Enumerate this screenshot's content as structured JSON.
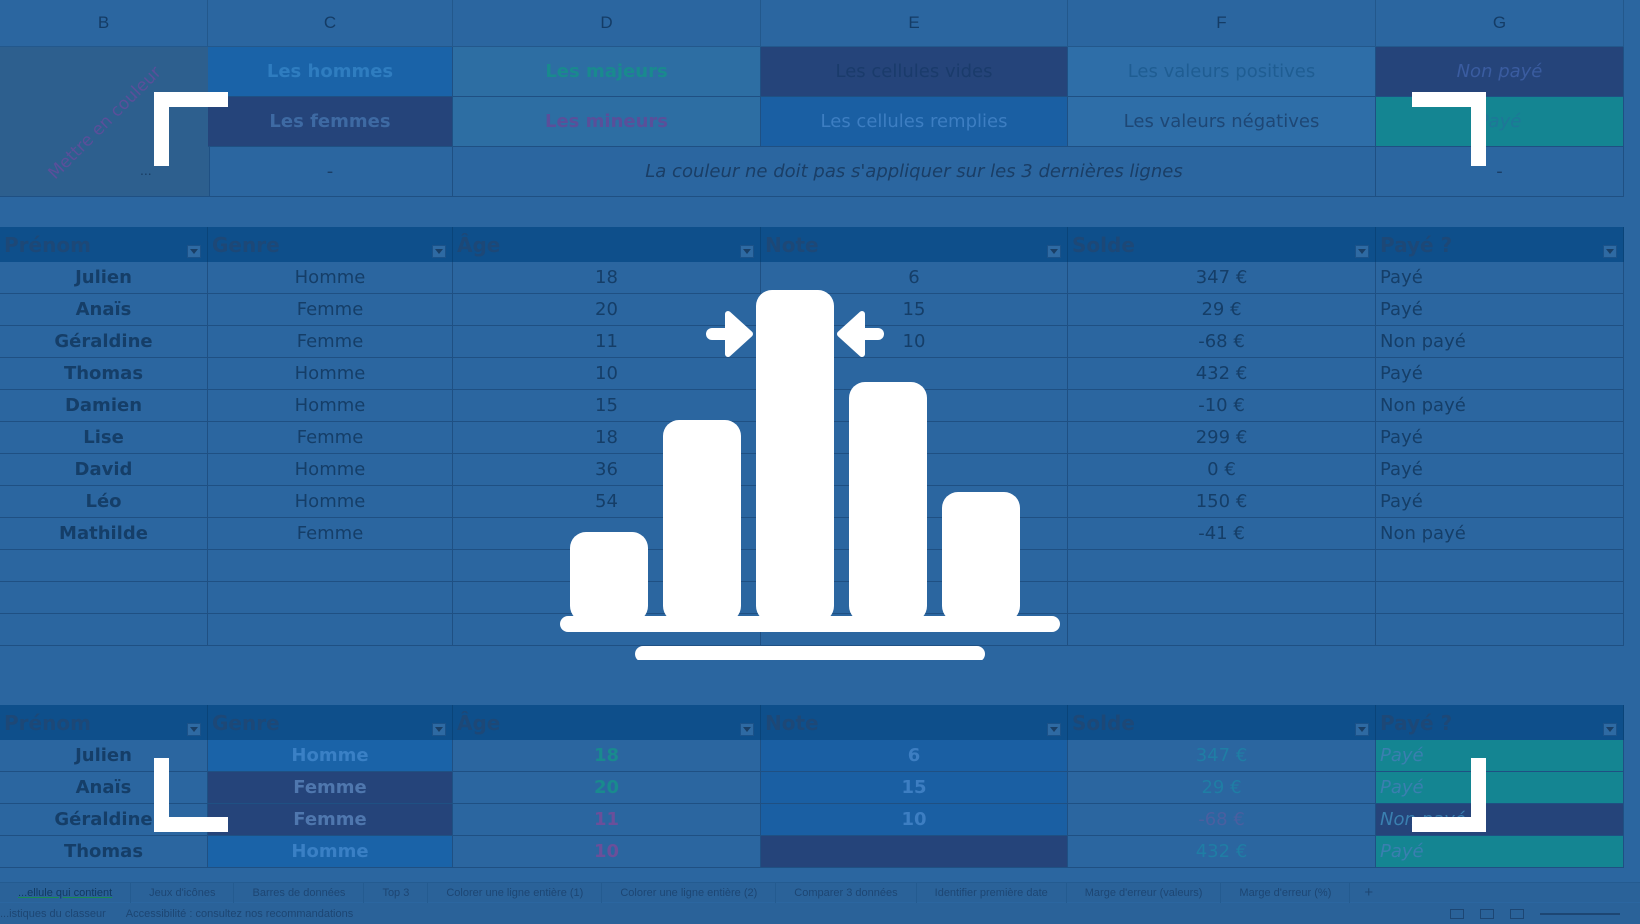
{
  "column_headers": [
    "B",
    "C",
    "D",
    "E",
    "F",
    "G"
  ],
  "rule_box": {
    "label": "Mettre en couleur",
    "ellipsis": "...",
    "rows": [
      [
        "Les hommes",
        "Les majeurs",
        "Les cellules vides",
        "Les valeurs positives",
        "Non payé"
      ],
      [
        "Les femmes",
        "Les mineurs",
        "Les cellules remplies",
        "Les valeurs négatives",
        "Payé"
      ]
    ],
    "note_left": "-",
    "note": "La couleur ne doit pas s'appliquer sur les 3 dernières lignes",
    "note_right": "-"
  },
  "table_headers": [
    "Prénom",
    "Genre",
    "Âge",
    "Note",
    "Solde",
    "Payé ?"
  ],
  "table1": [
    [
      "Julien",
      "Homme",
      "18",
      "6",
      "347 €",
      "Payé"
    ],
    [
      "Anaïs",
      "Femme",
      "20",
      "15",
      "29 €",
      "Payé"
    ],
    [
      "Géraldine",
      "Femme",
      "11",
      "10",
      "-68 €",
      "Non payé"
    ],
    [
      "Thomas",
      "Homme",
      "10",
      "",
      "432 €",
      "Payé"
    ],
    [
      "Damien",
      "Homme",
      "15",
      "",
      "-10 €",
      "Non payé"
    ],
    [
      "Lise",
      "Femme",
      "18",
      "",
      "299 €",
      "Payé"
    ],
    [
      "David",
      "Homme",
      "36",
      "",
      "0 €",
      "Payé"
    ],
    [
      "Léo",
      "Homme",
      "54",
      "",
      "150 €",
      "Payé"
    ],
    [
      "Mathilde",
      "Femme",
      "",
      "",
      "-41 €",
      "Non payé"
    ]
  ],
  "table2": [
    [
      "Julien",
      "Homme",
      "18",
      "6",
      "347 €",
      "Payé"
    ],
    [
      "Anaïs",
      "Femme",
      "20",
      "15",
      "29 €",
      "Payé"
    ],
    [
      "Géraldine",
      "Femme",
      "11",
      "10",
      "-68 €",
      "Non payé"
    ],
    [
      "Thomas",
      "Homme",
      "10",
      "",
      "432 €",
      "Payé"
    ]
  ],
  "sheet_tabs": [
    "...ellule qui contient",
    "Jeux d'icônes",
    "Barres de données",
    "Top 3",
    "Colorer une ligne entière (1)",
    "Colorer une ligne entière (2)",
    "Comparer 3 données",
    "Identifier première date",
    "Marge d'erreur (valeurs)",
    "Marge d'erreur (%)"
  ],
  "add_sheet": "+",
  "status": {
    "stats": "...istiques du classeur",
    "accessibility": "Accessibilité : consultez nos recommandations"
  },
  "overlay_icon": "histogram-chart-icon",
  "colors": {
    "overlay_blue": "#2b66a0",
    "blue_dark": "#1f4d8a",
    "navy": "#2a3f7a",
    "teal": "#14838f",
    "light": "#2e73ad"
  }
}
